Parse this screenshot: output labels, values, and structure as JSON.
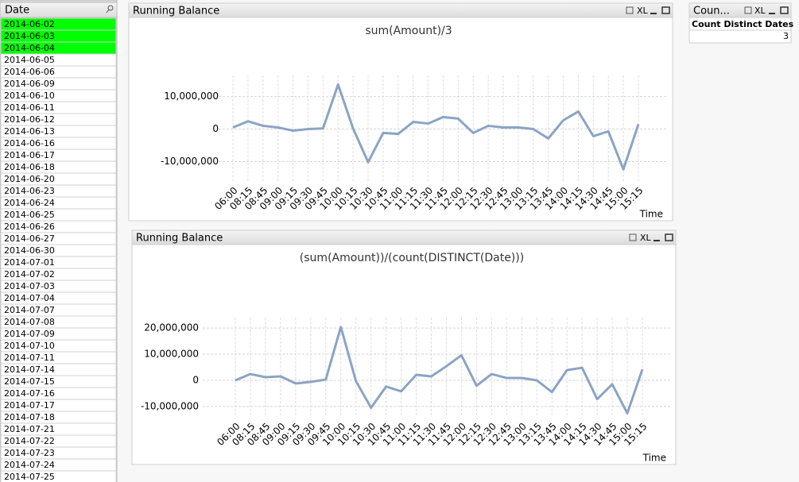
{
  "listbox": {
    "title": "Date",
    "items": [
      {
        "label": "2014-06-02",
        "selected": true
      },
      {
        "label": "2014-06-03",
        "selected": true
      },
      {
        "label": "2014-06-04",
        "selected": true
      },
      {
        "label": "2014-06-05"
      },
      {
        "label": "2014-06-06"
      },
      {
        "label": "2014-06-09"
      },
      {
        "label": "2014-06-10"
      },
      {
        "label": "2014-06-11"
      },
      {
        "label": "2014-06-12"
      },
      {
        "label": "2014-06-13"
      },
      {
        "label": "2014-06-16"
      },
      {
        "label": "2014-06-17"
      },
      {
        "label": "2014-06-18"
      },
      {
        "label": "2014-06-20"
      },
      {
        "label": "2014-06-23"
      },
      {
        "label": "2014-06-24"
      },
      {
        "label": "2014-06-25"
      },
      {
        "label": "2014-06-26"
      },
      {
        "label": "2014-06-27"
      },
      {
        "label": "2014-06-30"
      },
      {
        "label": "2014-07-01"
      },
      {
        "label": "2014-07-02"
      },
      {
        "label": "2014-07-03"
      },
      {
        "label": "2014-07-04"
      },
      {
        "label": "2014-07-07"
      },
      {
        "label": "2014-07-08"
      },
      {
        "label": "2014-07-09"
      },
      {
        "label": "2014-07-10"
      },
      {
        "label": "2014-07-11"
      },
      {
        "label": "2014-07-14"
      },
      {
        "label": "2014-07-15"
      },
      {
        "label": "2014-07-16"
      },
      {
        "label": "2014-07-17"
      },
      {
        "label": "2014-07-18"
      },
      {
        "label": "2014-07-21"
      },
      {
        "label": "2014-07-22"
      },
      {
        "label": "2014-07-23"
      },
      {
        "label": "2014-07-24"
      },
      {
        "label": "2014-07-25"
      }
    ]
  },
  "tablebox": {
    "caption": "Coun...",
    "export_label": "XL",
    "header": "Count Distinct Dates",
    "value": 3
  },
  "chart_data": [
    {
      "type": "line",
      "caption": "Running Balance",
      "export_label": "XL",
      "title": "sum(Amount)/3",
      "x_label": "Time",
      "categories": [
        "06:00",
        "08:15",
        "08:45",
        "09:00",
        "09:15",
        "09:30",
        "09:45",
        "10:00",
        "10:15",
        "10:30",
        "10:45",
        "11:00",
        "11:15",
        "11:30",
        "11:45",
        "12:00",
        "12:15",
        "12:30",
        "12:45",
        "13:00",
        "13:15",
        "13:45",
        "14:00",
        "14:15",
        "14:30",
        "14:45",
        "15:00",
        "15:15"
      ],
      "values": [
        500000,
        2400000,
        1000000,
        500000,
        -500000,
        0,
        200000,
        13700000,
        200000,
        -10200000,
        -1200000,
        -1500000,
        2200000,
        1700000,
        3700000,
        3200000,
        -1200000,
        1000000,
        500000,
        500000,
        0,
        -2900000,
        2700000,
        5400000,
        -2200000,
        -700000,
        -12400000,
        1500000
      ],
      "color": "#8ba4c4",
      "ylim": [
        -16000000,
        16500000
      ],
      "yticks": [
        {
          "value": -10000000,
          "label": "-10,000,000"
        },
        0,
        {
          "value": 10000000,
          "label": "10,000,000"
        }
      ],
      "grid": true
    },
    {
      "type": "line",
      "caption": "Running Balance",
      "export_label": "XL",
      "title": "(sum(Amount))/(count(DISTINCT(Date)))",
      "x_label": "Time",
      "categories": [
        "06:00",
        "08:15",
        "08:45",
        "09:00",
        "09:15",
        "09:30",
        "09:45",
        "10:00",
        "10:15",
        "10:30",
        "10:45",
        "11:00",
        "11:15",
        "11:30",
        "11:45",
        "12:00",
        "12:15",
        "12:30",
        "12:45",
        "13:00",
        "13:15",
        "13:45",
        "14:00",
        "14:15",
        "14:30",
        "14:45",
        "15:00",
        "15:15"
      ],
      "values": [
        0,
        2400000,
        1200000,
        1500000,
        -1200000,
        -600000,
        300000,
        20400000,
        -300000,
        -10500000,
        -2400000,
        -4200000,
        2100000,
        1500000,
        5400000,
        9600000,
        -2100000,
        2400000,
        900000,
        900000,
        0,
        -4500000,
        3900000,
        4800000,
        -7200000,
        -1500000,
        -12600000,
        4200000
      ],
      "color": "#8ba4c4",
      "ylim": [
        -14000000,
        24000000
      ],
      "yticks": [
        {
          "value": -10000000,
          "label": "-10,000,000"
        },
        0,
        {
          "value": 10000000,
          "label": "10,000,000"
        },
        {
          "value": 20000000,
          "label": "20,000,000"
        }
      ],
      "grid": true
    }
  ]
}
